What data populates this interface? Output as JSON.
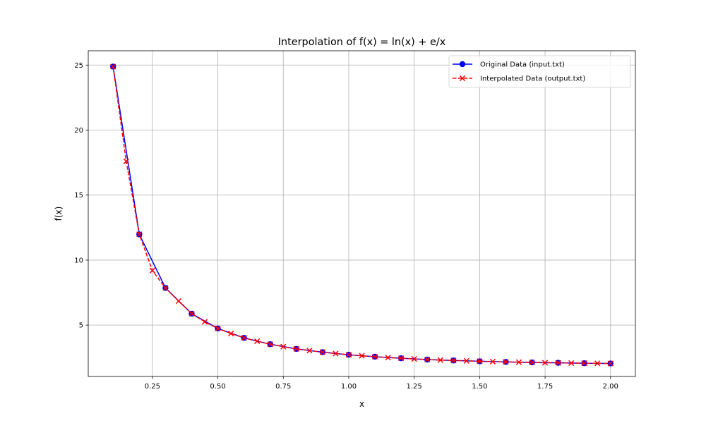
{
  "chart_data": {
    "type": "line",
    "title": "Interpolation of f(x) = ln(x) + e/x",
    "xlabel": "x",
    "ylabel": "f(x)",
    "xlim": [
      0.005,
      2.095
    ],
    "ylim": [
      1.05,
      26.1
    ],
    "x_ticks": [
      0.25,
      0.5,
      0.75,
      1.0,
      1.25,
      1.5,
      1.75,
      2.0
    ],
    "x_tick_labels": [
      "0.25",
      "0.50",
      "0.75",
      "1.00",
      "1.25",
      "1.50",
      "1.75",
      "2.00"
    ],
    "y_ticks": [
      5,
      10,
      15,
      20,
      25
    ],
    "y_tick_labels": [
      "5",
      "10",
      "15",
      "20",
      "25"
    ],
    "grid": true,
    "legend_position": "top-right",
    "series": [
      {
        "name": "Original Data (input.txt)",
        "color": "#0000ff",
        "linestyle": "solid",
        "marker": "circle",
        "x": [
          0.1,
          0.2,
          0.3,
          0.4,
          0.5,
          0.6,
          0.7,
          0.8,
          0.9,
          1.0,
          1.1,
          1.2,
          1.3,
          1.4,
          1.5,
          1.6,
          1.7,
          1.8,
          1.9,
          2.0
        ],
        "y": [
          24.88,
          11.98,
          7.86,
          5.88,
          4.74,
          4.02,
          3.53,
          3.17,
          2.92,
          2.72,
          2.57,
          2.45,
          2.35,
          2.28,
          2.22,
          2.17,
          2.13,
          2.1,
          2.07,
          2.05
        ]
      },
      {
        "name": "Interpolated Data (output.txt)",
        "color": "#ff0000",
        "linestyle": "dashed",
        "marker": "x",
        "x": [
          0.1,
          0.15,
          0.2,
          0.25,
          0.3,
          0.35,
          0.4,
          0.45,
          0.5,
          0.55,
          0.6,
          0.65,
          0.7,
          0.75,
          0.8,
          0.85,
          0.9,
          0.95,
          1.0,
          1.05,
          1.1,
          1.15,
          1.2,
          1.25,
          1.3,
          1.35,
          1.4,
          1.45,
          1.5,
          1.55,
          1.6,
          1.65,
          1.7,
          1.75,
          1.8,
          1.85,
          1.9,
          1.95,
          2.0
        ],
        "y": [
          24.88,
          17.6,
          11.98,
          9.2,
          7.86,
          6.85,
          5.88,
          5.25,
          4.74,
          4.35,
          4.02,
          3.76,
          3.53,
          3.34,
          3.17,
          3.04,
          2.92,
          2.81,
          2.72,
          2.64,
          2.57,
          2.5,
          2.45,
          2.4,
          2.35,
          2.31,
          2.28,
          2.25,
          2.22,
          2.19,
          2.17,
          2.15,
          2.13,
          2.11,
          2.1,
          2.08,
          2.07,
          2.06,
          2.05
        ]
      }
    ]
  }
}
